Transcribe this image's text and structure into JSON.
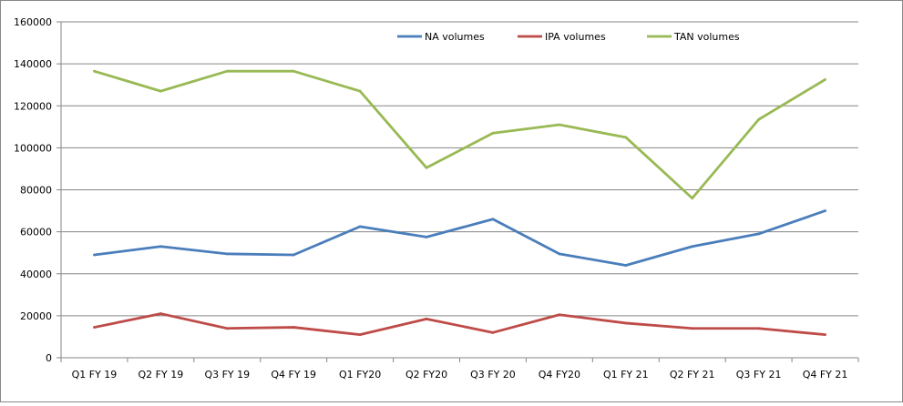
{
  "chart_data": {
    "type": "line",
    "title": "",
    "xlabel": "",
    "ylabel": "",
    "ylim": [
      0,
      160000
    ],
    "yticks": [
      0,
      20000,
      40000,
      60000,
      80000,
      100000,
      120000,
      140000,
      160000
    ],
    "grid": true,
    "legend_position": "top-center",
    "categories": [
      "Q1 FY 19",
      "Q2 FY 19",
      "Q3 FY 19",
      "Q4 FY 19",
      "Q1 FY20",
      "Q2 FY20",
      "Q3 FY 20",
      "Q4 FY20",
      "Q1 FY 21",
      "Q2 FY 21",
      "Q3 FY 21",
      "Q4 FY 21"
    ],
    "series": [
      {
        "name": "NA volumes",
        "color": "#4a7ebb",
        "values": [
          49000,
          53000,
          49500,
          49000,
          62500,
          57500,
          66000,
          49500,
          44000,
          53000,
          59000,
          70000
        ]
      },
      {
        "name": "IPA volumes",
        "color": "#be4b48",
        "values": [
          14500,
          21000,
          14000,
          14500,
          11000,
          18500,
          12000,
          20500,
          16500,
          14000,
          14000,
          11000
        ]
      },
      {
        "name": "TAN volumes",
        "color": "#98b954",
        "values": [
          136500,
          127000,
          136500,
          136500,
          127000,
          90500,
          107000,
          111000,
          105000,
          76000,
          113500,
          132500
        ]
      }
    ]
  }
}
